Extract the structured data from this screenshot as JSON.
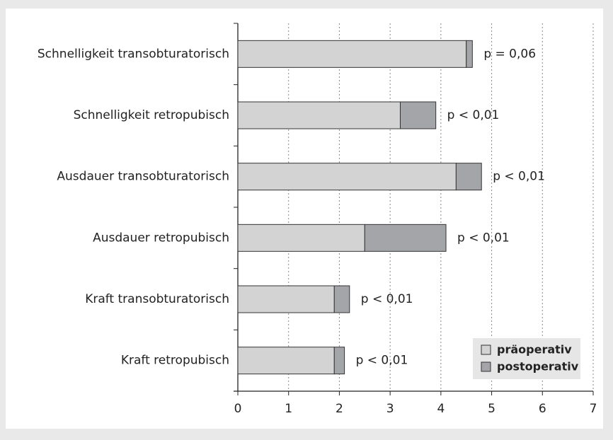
{
  "chart_data": {
    "type": "stacked_barh",
    "categories": [
      "Schnelligkeit transobturatorisch",
      "Schnelligkeit retropubisch",
      "Ausdauer transobturatorisch",
      "Ausdauer retropubisch",
      "Kraft transobturatorisch",
      "Kraft retropubisch"
    ],
    "series": [
      {
        "name": "präoperativ",
        "color": "#d3d3d3",
        "values": [
          4.5,
          3.2,
          4.3,
          2.5,
          1.9,
          1.9
        ]
      },
      {
        "name": "postoperativ",
        "color": "#a4a5a8",
        "values": [
          0.12,
          0.7,
          0.5,
          1.6,
          0.3,
          0.2
        ]
      }
    ],
    "annotations": [
      "p = 0,06",
      "p < 0,01",
      "p < 0,01",
      "p < 0,01",
      "p < 0,01",
      "p < 0,01"
    ],
    "xlim": [
      0,
      7
    ],
    "xticks": [
      0,
      1,
      2,
      3,
      4,
      5,
      6,
      7
    ],
    "grid": true,
    "legend": "lower right"
  }
}
